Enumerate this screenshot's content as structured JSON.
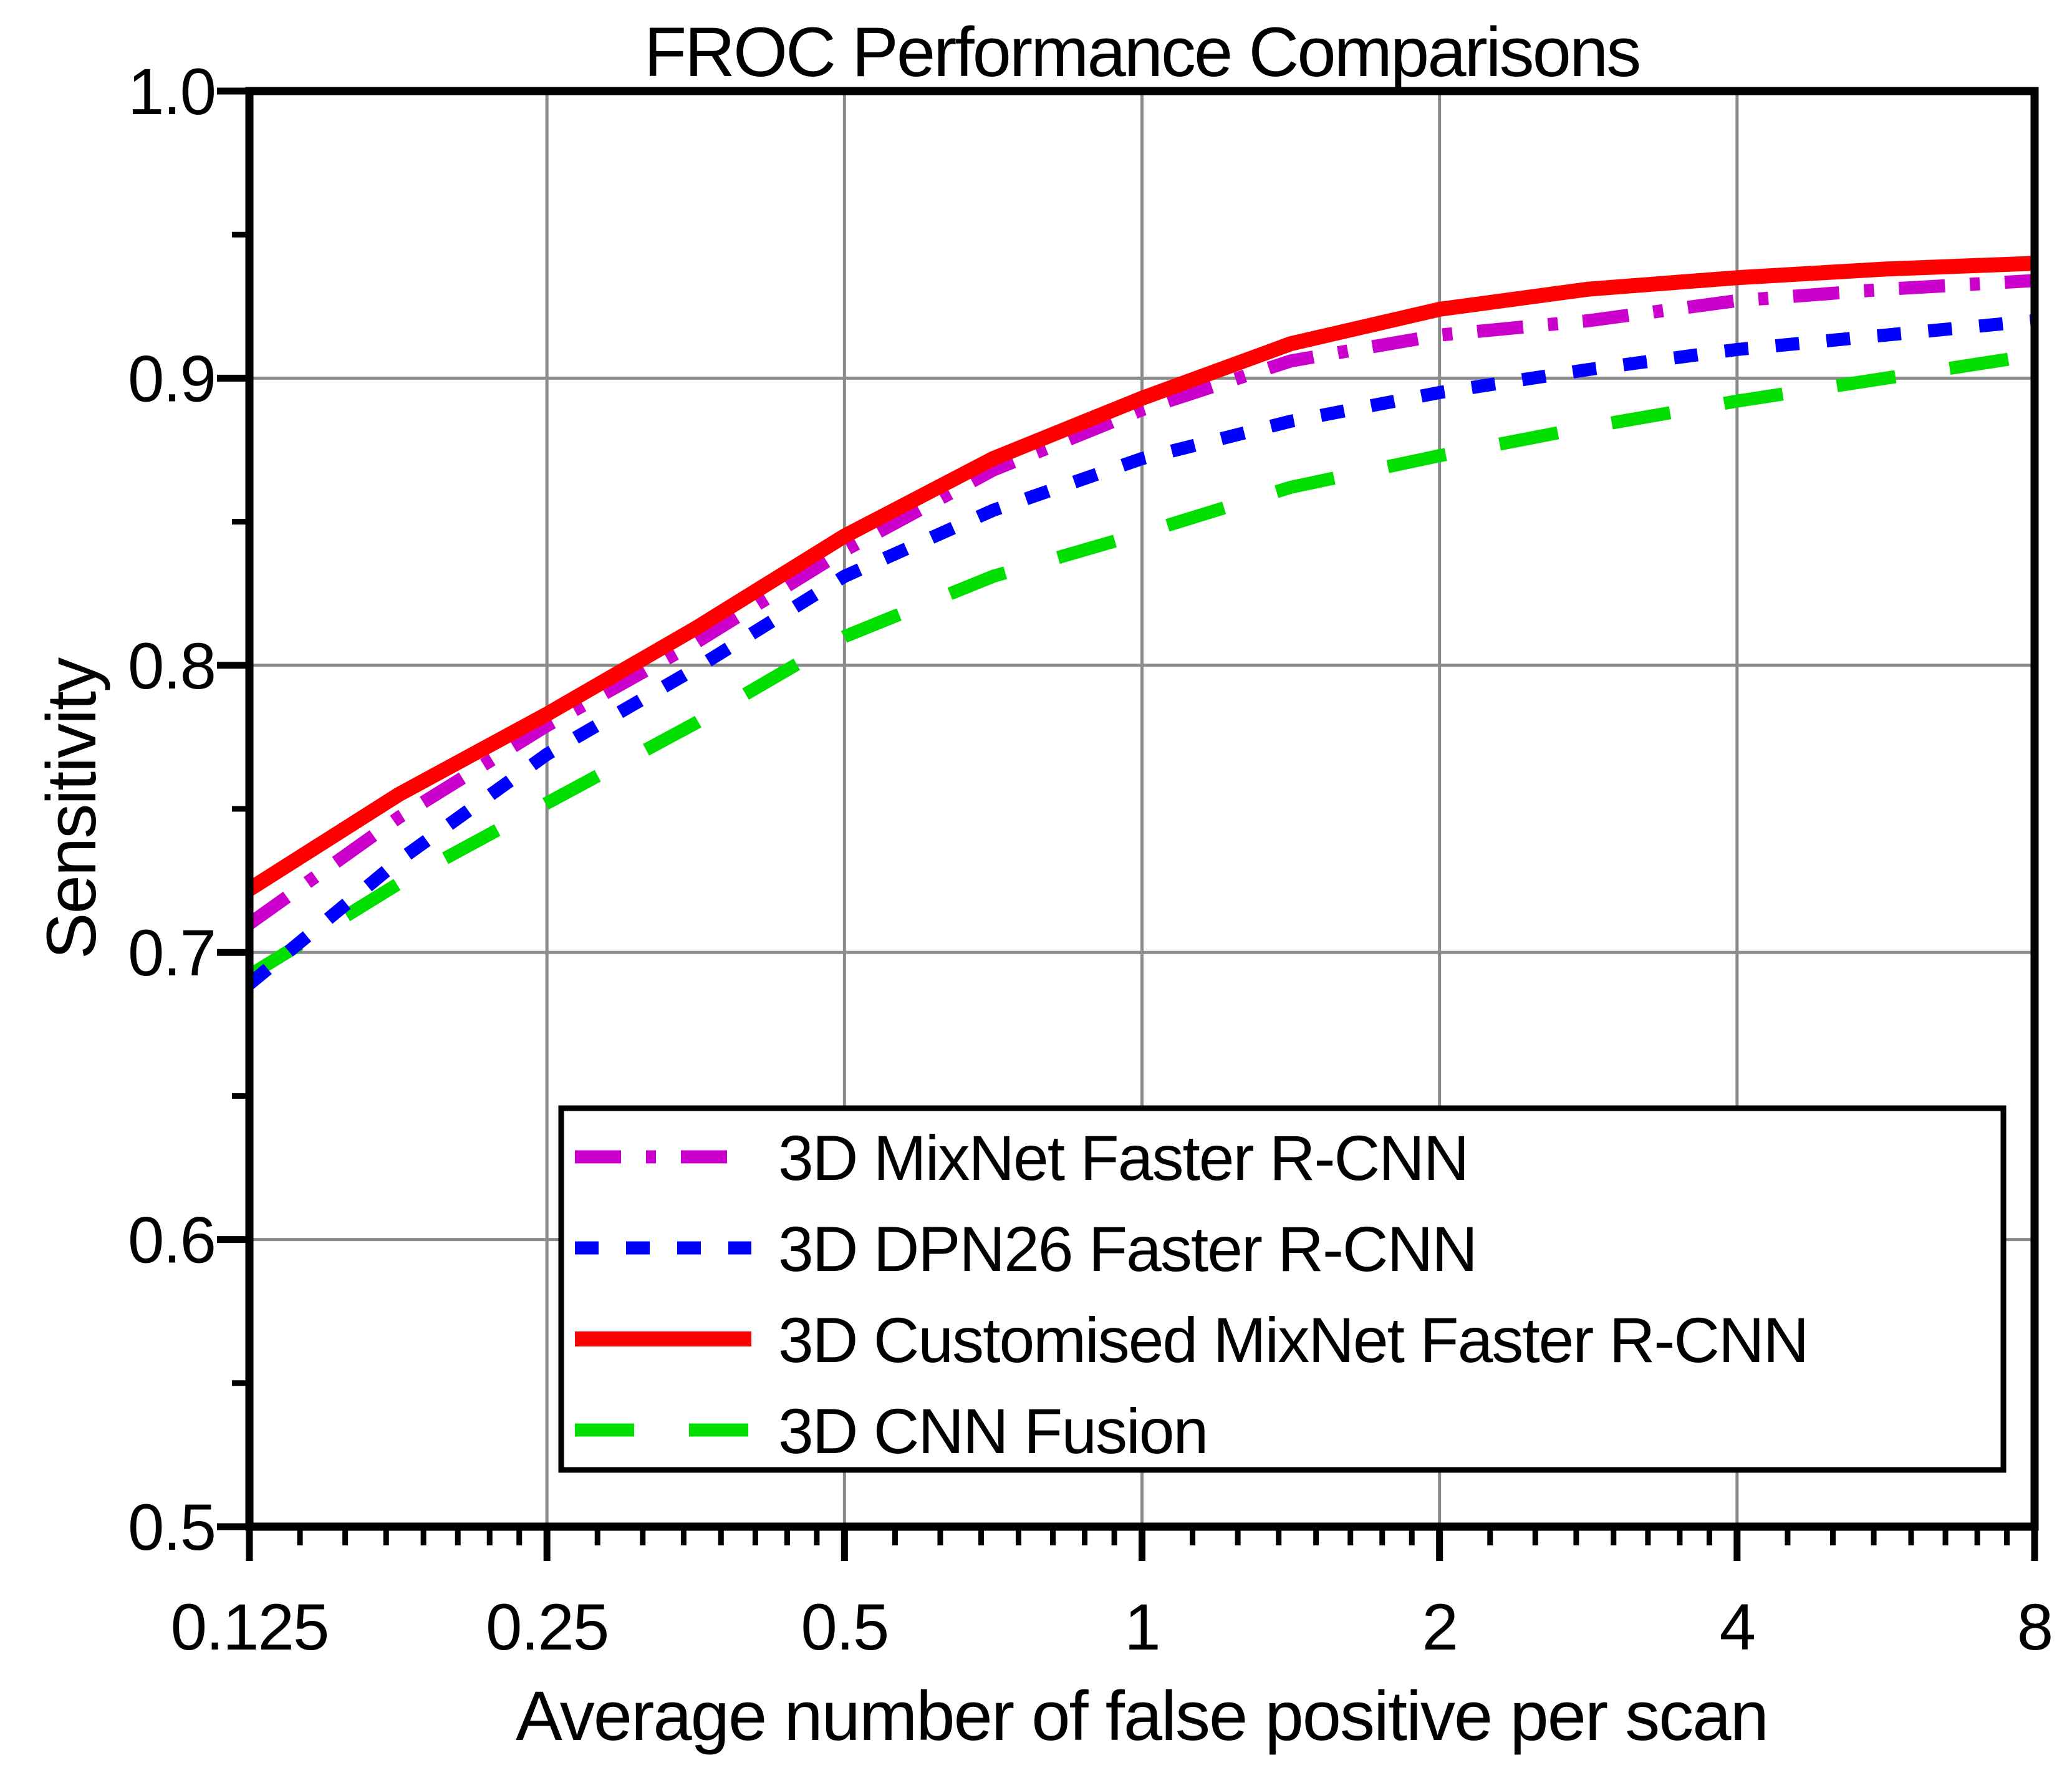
{
  "title": "FROC Performance Comparisons",
  "axes": {
    "x": {
      "label": "Average number of false positive per scan",
      "scale": "log2",
      "min": 0.125,
      "max": 8,
      "major_ticks": [
        0.125,
        0.25,
        0.5,
        1,
        2,
        4,
        8
      ],
      "tick_labels": [
        "0.125",
        "0.25",
        "0.5",
        "1",
        "2",
        "4",
        "8"
      ],
      "minor_subdivisions_per_octave": 8
    },
    "y": {
      "label": "Sensitivity",
      "scale": "linear",
      "min": 0.5,
      "max": 1.0,
      "major_ticks": [
        0.5,
        0.6,
        0.7,
        0.8,
        0.9,
        1.0
      ],
      "tick_labels": [
        "0.5",
        "0.6",
        "0.7",
        "0.8",
        "0.9",
        "1.0"
      ],
      "minor_step": 0.05
    }
  },
  "grid": {
    "color": "#8C8C8C",
    "x_lines": [
      0.25,
      0.5,
      1,
      2,
      4
    ],
    "y_lines": [
      0.6,
      0.7,
      0.8,
      0.9
    ]
  },
  "colors": {
    "mixnet": "#CC00CC",
    "dpn26": "#0000FF",
    "customised_mixnet": "#FF0000",
    "cnn_fusion": "#00DF00",
    "axis": "#000000",
    "grid": "#8C8C8C"
  },
  "legend": {
    "entries": [
      {
        "label": "3D MixNet Faster R-CNN",
        "color": "#CC00CC",
        "style": "dash-dot"
      },
      {
        "label": "3D DPN26 Faster R-CNN",
        "color": "#0000FF",
        "style": "dotted"
      },
      {
        "label": "3D Customised MixNet Faster R-CNN",
        "color": "#FF0000",
        "style": "solid"
      },
      {
        "label": "3D CNN Fusion",
        "color": "#00DF00",
        "style": "dashed"
      }
    ]
  },
  "chart_data": {
    "type": "line",
    "title": "FROC Performance Comparisons",
    "xlabel": "Average number of false positive per scan",
    "ylabel": "Sensitivity",
    "x_scale": "log2",
    "xlim": [
      0.125,
      8
    ],
    "ylim": [
      0.5,
      1.0
    ],
    "grid": true,
    "legend_position": "lower-center",
    "x": [
      0.125,
      0.177,
      0.25,
      0.354,
      0.5,
      0.707,
      1,
      1.414,
      2,
      2.828,
      4,
      5.657,
      8
    ],
    "series": [
      {
        "name": "3D MixNet Faster R-CNN",
        "color": "#CC00CC",
        "style": "dash-dot",
        "values": [
          0.71,
          0.747,
          0.779,
          0.808,
          0.84,
          0.868,
          0.889,
          0.906,
          0.915,
          0.92,
          0.927,
          0.931,
          0.934
        ]
      },
      {
        "name": "3D DPN26 Faster R-CNN",
        "color": "#0000FF",
        "style": "dotted",
        "values": [
          0.689,
          0.732,
          0.769,
          0.799,
          0.831,
          0.854,
          0.872,
          0.885,
          0.895,
          0.903,
          0.91,
          0.915,
          0.92
        ]
      },
      {
        "name": "3D Customised MixNet Faster R-CNN",
        "color": "#FF0000",
        "style": "solid",
        "values": [
          0.722,
          0.755,
          0.783,
          0.813,
          0.845,
          0.872,
          0.893,
          0.912,
          0.924,
          0.931,
          0.935,
          0.938,
          0.94
        ]
      },
      {
        "name": "3D CNN Fusion",
        "color": "#00DF00",
        "style": "dashed",
        "values": [
          0.692,
          0.724,
          0.752,
          0.78,
          0.81,
          0.831,
          0.846,
          0.862,
          0.873,
          0.883,
          0.892,
          0.9,
          0.908
        ]
      }
    ]
  }
}
